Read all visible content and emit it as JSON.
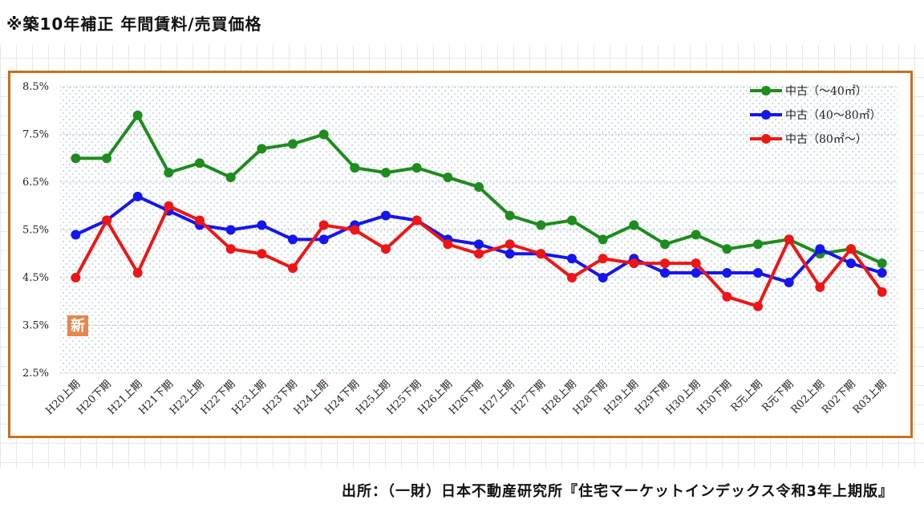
{
  "title": "※築10年補正 年間賃料/売買価格",
  "source": "出所：（一財）日本不動産研究所『住宅マーケットインデックス令和3年上期版』",
  "new_badge": "新",
  "chart_data": {
    "type": "line",
    "ylim": [
      2.5,
      8.5
    ],
    "yticks": [
      2.5,
      3.5,
      4.5,
      5.5,
      6.5,
      7.5,
      8.5
    ],
    "ytick_labels": [
      "2.5%",
      "3.5%",
      "4.5%",
      "5.5%",
      "6.5%",
      "7.5%",
      "8.5%"
    ],
    "grid": true,
    "legend_position": "top-right",
    "categories": [
      "H20上期",
      "H20下期",
      "H21上期",
      "H21下期",
      "H22上期",
      "H22下期",
      "H23上期",
      "H23下期",
      "H24上期",
      "H24下期",
      "H25上期",
      "H25下期",
      "H26上期",
      "H26下期",
      "H27上期",
      "H27下期",
      "H28上期",
      "H28下期",
      "H29上期",
      "H29下期",
      "H30上期",
      "H30下期",
      "R元上期",
      "R元下期",
      "R02上期",
      "R02下期",
      "R03上期"
    ],
    "series": [
      {
        "name": "中古（～40㎡）",
        "color": "#1e8c1e",
        "values": [
          7.0,
          7.0,
          7.9,
          6.7,
          6.9,
          6.6,
          7.2,
          7.3,
          7.5,
          6.8,
          6.7,
          6.8,
          6.6,
          6.4,
          5.8,
          5.6,
          5.7,
          5.3,
          5.6,
          5.2,
          5.4,
          5.1,
          5.2,
          5.3,
          5.0,
          5.1,
          4.8
        ]
      },
      {
        "name": "中古（40～80㎡）",
        "color": "#1515f0",
        "values": [
          5.4,
          5.7,
          6.2,
          5.9,
          5.6,
          5.5,
          5.6,
          5.3,
          5.3,
          5.6,
          5.8,
          5.7,
          5.3,
          5.2,
          5.0,
          5.0,
          4.9,
          4.5,
          4.9,
          4.6,
          4.6,
          4.6,
          4.6,
          4.4,
          5.1,
          4.8,
          4.6
        ]
      },
      {
        "name": "中古（80㎡～）",
        "color": "#f01515",
        "values": [
          4.5,
          5.7,
          4.6,
          6.0,
          5.7,
          5.1,
          5.0,
          4.7,
          5.6,
          5.5,
          5.1,
          5.7,
          5.2,
          5.0,
          5.2,
          5.0,
          4.5,
          4.9,
          4.8,
          4.8,
          4.8,
          4.1,
          3.9,
          5.3,
          4.3,
          5.1,
          4.2
        ]
      }
    ]
  }
}
